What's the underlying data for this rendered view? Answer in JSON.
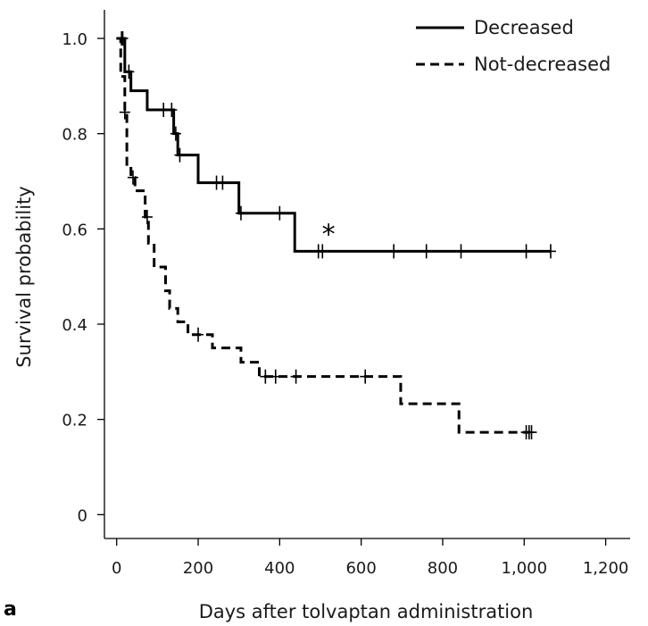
{
  "panel_label": "a",
  "chart_data": {
    "type": "line",
    "xlabel": "Days after tolvaptan administration",
    "ylabel": "Survival probability",
    "xlim": [
      -30,
      1260
    ],
    "ylim": [
      -0.05,
      1.06
    ],
    "x_ticks": [
      0,
      200,
      400,
      600,
      800,
      1000,
      1200
    ],
    "x_tick_labels": [
      "0",
      "200",
      "400",
      "600",
      "800",
      "1,000",
      "1,200"
    ],
    "y_ticks": [
      0,
      0.2,
      0.4,
      0.6,
      0.8,
      1.0
    ],
    "y_tick_labels": [
      "0",
      "0.2",
      "0.4",
      "0.6",
      "0.8",
      "1.0"
    ],
    "legend_position": "top-right",
    "grid": false,
    "annotations": [
      {
        "text": "*",
        "x": 520,
        "y": 0.6
      }
    ],
    "series": [
      {
        "name": "Decreased",
        "style": "solid",
        "color": "#000000",
        "steps": [
          [
            0,
            1.0
          ],
          [
            20,
            0.93
          ],
          [
            35,
            0.89
          ],
          [
            75,
            0.85
          ],
          [
            140,
            0.8
          ],
          [
            150,
            0.755
          ],
          [
            200,
            0.697
          ],
          [
            300,
            0.633
          ],
          [
            437,
            0.553
          ],
          [
            1065,
            0.553
          ]
        ],
        "censored": [
          [
            15,
            1.0
          ],
          [
            30,
            0.93
          ],
          [
            115,
            0.85
          ],
          [
            135,
            0.85
          ],
          [
            145,
            0.8
          ],
          [
            155,
            0.755
          ],
          [
            245,
            0.697
          ],
          [
            260,
            0.697
          ],
          [
            305,
            0.633
          ],
          [
            400,
            0.633
          ],
          [
            495,
            0.553
          ],
          [
            505,
            0.553
          ],
          [
            680,
            0.553
          ],
          [
            760,
            0.553
          ],
          [
            845,
            0.553
          ],
          [
            1005,
            0.553
          ],
          [
            1065,
            0.553
          ]
        ]
      },
      {
        "name": "Not-decreased",
        "style": "dashed",
        "color": "#000000",
        "steps": [
          [
            0,
            1.0
          ],
          [
            10,
            0.92
          ],
          [
            20,
            0.845
          ],
          [
            25,
            0.73
          ],
          [
            35,
            0.708
          ],
          [
            45,
            0.68
          ],
          [
            70,
            0.625
          ],
          [
            78,
            0.57
          ],
          [
            92,
            0.52
          ],
          [
            120,
            0.47
          ],
          [
            130,
            0.433
          ],
          [
            150,
            0.405
          ],
          [
            175,
            0.378
          ],
          [
            235,
            0.35
          ],
          [
            305,
            0.32
          ],
          [
            350,
            0.29
          ],
          [
            697,
            0.233
          ],
          [
            840,
            0.173
          ],
          [
            1015,
            0.173
          ]
        ],
        "censored": [
          [
            12,
            1.0
          ],
          [
            20,
            0.845
          ],
          [
            40,
            0.708
          ],
          [
            75,
            0.625
          ],
          [
            200,
            0.378
          ],
          [
            365,
            0.29
          ],
          [
            390,
            0.29
          ],
          [
            440,
            0.29
          ],
          [
            610,
            0.29
          ],
          [
            1005,
            0.173
          ],
          [
            1012,
            0.173
          ],
          [
            1018,
            0.173
          ]
        ]
      }
    ]
  }
}
